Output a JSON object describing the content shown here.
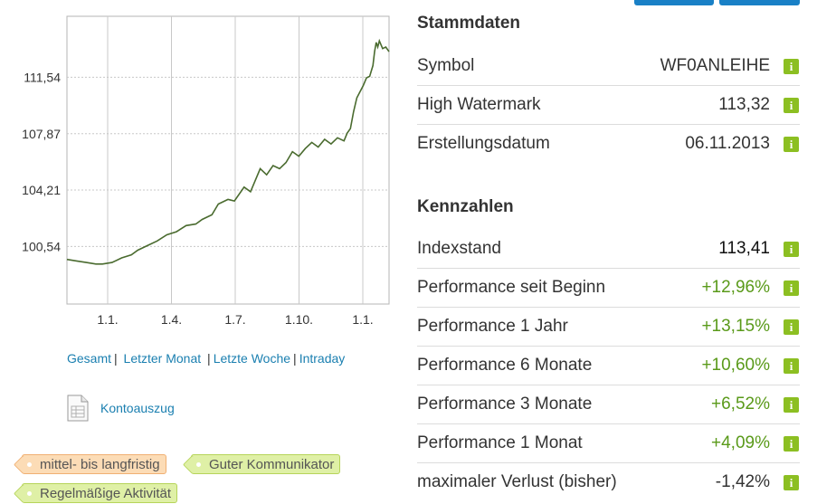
{
  "chart_data": {
    "type": "line",
    "x_ticks": [
      "1.1.",
      "1.4.",
      "1.7.",
      "1.10.",
      "1.1."
    ],
    "y_ticks": [
      "111,54",
      "107,87",
      "104,21",
      "100,54"
    ],
    "ylim": [
      96.8,
      115.5
    ],
    "grid": true,
    "series": [
      {
        "color": "#4a6b2f",
        "x": [
          0,
          0.03,
          0.06,
          0.09,
          0.11,
          0.14,
          0.17,
          0.2,
          0.22,
          0.25,
          0.28,
          0.31,
          0.34,
          0.37,
          0.4,
          0.42,
          0.45,
          0.47,
          0.5,
          0.52,
          0.55,
          0.57,
          0.6,
          0.62,
          0.64,
          0.66,
          0.68,
          0.7,
          0.72,
          0.74,
          0.76,
          0.78,
          0.8,
          0.82,
          0.84,
          0.86,
          0.87,
          0.88,
          0.89,
          0.9,
          0.92,
          0.93,
          0.94,
          0.95,
          0.955,
          0.96,
          0.965,
          0.97,
          0.98,
          0.99,
          1
        ],
        "y": [
          99.7,
          99.6,
          99.5,
          99.4,
          99.4,
          99.5,
          99.8,
          100.0,
          100.3,
          100.6,
          100.9,
          101.3,
          101.5,
          101.9,
          102.0,
          102.3,
          102.6,
          103.3,
          103.6,
          103.5,
          104.4,
          104.1,
          105.6,
          105.2,
          105.8,
          105.6,
          106.0,
          106.7,
          106.4,
          106.9,
          107.3,
          107.0,
          107.5,
          107.2,
          107.6,
          107.4,
          107.9,
          108.2,
          109.3,
          110.2,
          111.0,
          111.5,
          111.6,
          112.3,
          113.2,
          113.8,
          113.5,
          113.9,
          113.4,
          113.5,
          113.2
        ]
      }
    ]
  },
  "links": {
    "gesamt": "Gesamt",
    "letzter_monat": "Letzter Monat",
    "letzte_woche": "Letzte Woche",
    "intraday": "Intraday",
    "sep1": "|",
    "sep2": "|",
    "sep3": "|"
  },
  "statement": {
    "label": "Kontoauszug"
  },
  "tags": [
    {
      "label": "mittel- bis langfristig",
      "style": "orange"
    },
    {
      "label": "Guter Kommunikator",
      "style": "green"
    },
    {
      "label": "Regelmäßige Aktivität",
      "style": "green"
    }
  ],
  "stammdaten": {
    "title": "Stammdaten",
    "rows": [
      {
        "label": "Symbol",
        "value": "WF0ANLEIHE"
      },
      {
        "label": "High Watermark",
        "value": "113,32"
      },
      {
        "label": "Erstellungsdatum",
        "value": "06.11.2013"
      }
    ]
  },
  "kennzahlen": {
    "title": "Kennzahlen",
    "rows": [
      {
        "label": "Indexstand",
        "value": "113,41"
      },
      {
        "label": "Performance seit Beginn",
        "value": "+12,96%"
      },
      {
        "label": "Performance 1 Jahr",
        "value": "+13,15%"
      },
      {
        "label": "Performance 6 Monate",
        "value": "+10,60%"
      },
      {
        "label": "Performance 3 Monate",
        "value": "+6,52%"
      },
      {
        "label": "Performance 1 Monat",
        "value": "+4,09%"
      },
      {
        "label": "maximaler Verlust (bisher)",
        "value": "-1,42%"
      }
    ]
  },
  "icons": {
    "info": "i",
    "info_icon_name": "info-icon",
    "document_icon_name": "document-icon"
  },
  "colors": {
    "positive": "#5a9a1a",
    "info_badge": "#8cbf22",
    "link": "#1a7fb0",
    "line": "#4a6b2f"
  }
}
